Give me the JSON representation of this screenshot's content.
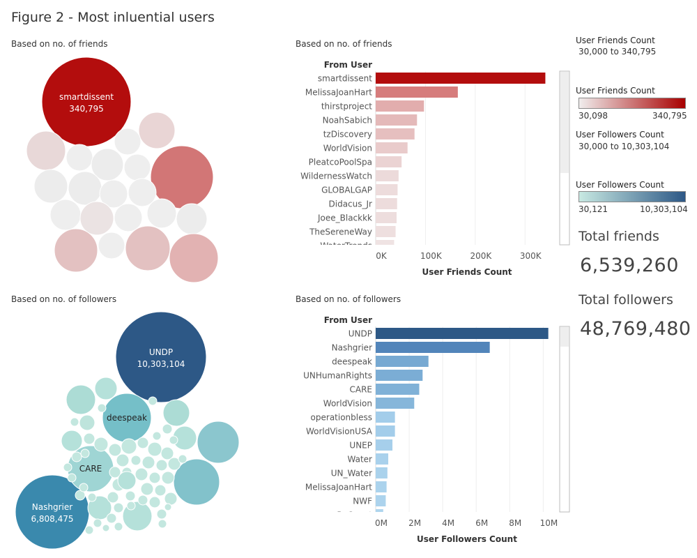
{
  "page": {
    "title": "Figure 2 - Most inluential users"
  },
  "sections": {
    "friends_bubble": "Based on no. of friends",
    "friends_bar": "Based on no. of friends",
    "followers_bubble": "Based on no. of followers",
    "followers_bar": "Based on no. of followers"
  },
  "legends": {
    "friends_filter": {
      "title": "User Friends Count",
      "range": "30,000 to 340,795"
    },
    "friends_color": {
      "title": "User Friends Count",
      "min": "30,098",
      "max": "340,795",
      "colors": [
        "#f0eded",
        "#a80000"
      ]
    },
    "followers_filter": {
      "title": "User Followers Count",
      "range": "30,000 to 10,303,104"
    },
    "followers_color": {
      "title": "User Followers Count",
      "min": "30,121",
      "max": "10,303,104",
      "colors": [
        "#c8e9e2",
        "#2d5886"
      ]
    }
  },
  "totals": {
    "friends_label": "Total friends",
    "friends_value": "6,539,260",
    "followers_label": "Total followers",
    "followers_value": "48,769,480"
  },
  "chart_data": [
    {
      "id": "friends-bubble",
      "type": "bubble",
      "title": "Based on no. of friends",
      "labeled": [
        {
          "name": "smartdissent",
          "value": "340,795"
        }
      ]
    },
    {
      "id": "friends-bar",
      "type": "bar",
      "orientation": "horizontal",
      "title": "Based on no. of friends",
      "row_header": "From User",
      "xlabel": "User Friends Count",
      "xlim": [
        0,
        350000
      ],
      "ticks": [
        "0K",
        "100K",
        "200K",
        "300K"
      ],
      "tick_values": [
        0,
        100000,
        200000,
        300000
      ],
      "categories": [
        "smartdissent",
        "MelissaJoanHart",
        "thirstproject",
        "NoahSabich",
        "tzDiscovery",
        "WorldVision",
        "PleatcoPoolSpa",
        "WildernessWatch",
        "GLOBALGAP",
        "Didacus_Jr",
        "Joee_Blackkk",
        "TheSereneWay",
        "WaterTrends"
      ],
      "values": [
        340795,
        165000,
        97000,
        83000,
        78000,
        64000,
        52000,
        46000,
        44000,
        43000,
        42000,
        40000,
        37000
      ],
      "colors": [
        "#b30d0d",
        "#d67c7c",
        "#e2adad",
        "#e4b9b9",
        "#e6bfbf",
        "#e9cbcb",
        "#ebd3d3",
        "#ecdada",
        "#eddcdc",
        "#eddcdc",
        "#eddddd",
        "#eedfdf",
        "#efe3e3"
      ]
    },
    {
      "id": "followers-bubble",
      "type": "bubble",
      "title": "Based on no. of followers",
      "labeled": [
        {
          "name": "UNDP",
          "value": "10,303,104"
        },
        {
          "name": "Nashgrier",
          "value": "6,808,475"
        },
        {
          "name": "deespeak",
          "value": ""
        },
        {
          "name": "CARE",
          "value": ""
        }
      ]
    },
    {
      "id": "followers-bar",
      "type": "bar",
      "orientation": "horizontal",
      "title": "Based on no. of followers",
      "row_header": "From User",
      "xlabel": "User Followers Count",
      "xlim": [
        0,
        10400000
      ],
      "ticks": [
        "0M",
        "2M",
        "4M",
        "6M",
        "8M",
        "10M"
      ],
      "tick_values": [
        0,
        2000000,
        4000000,
        6000000,
        8000000,
        10000000
      ],
      "categories": [
        "UNDP",
        "Nashgrier",
        "deespeak",
        "UNHumanRights",
        "CARE",
        "WorldVision",
        "operationbless",
        "WorldVisionUSA",
        "UNEP",
        "Water",
        "UN_Water",
        "MelissaJoanHart",
        "NWF",
        "ReQuest"
      ],
      "values": [
        10303104,
        6808475,
        3150000,
        2800000,
        2600000,
        2300000,
        1150000,
        1150000,
        1000000,
        750000,
        700000,
        650000,
        600000,
        450000
      ],
      "colors": [
        "#2d5886",
        "#5285ba",
        "#77a9d2",
        "#7badd5",
        "#80b1d7",
        "#86b6da",
        "#a3cdea",
        "#a3cdea",
        "#a6cfeb",
        "#a9d1ec",
        "#aad2ec",
        "#abd3ed",
        "#acd3ed",
        "#afd5ee"
      ]
    }
  ]
}
